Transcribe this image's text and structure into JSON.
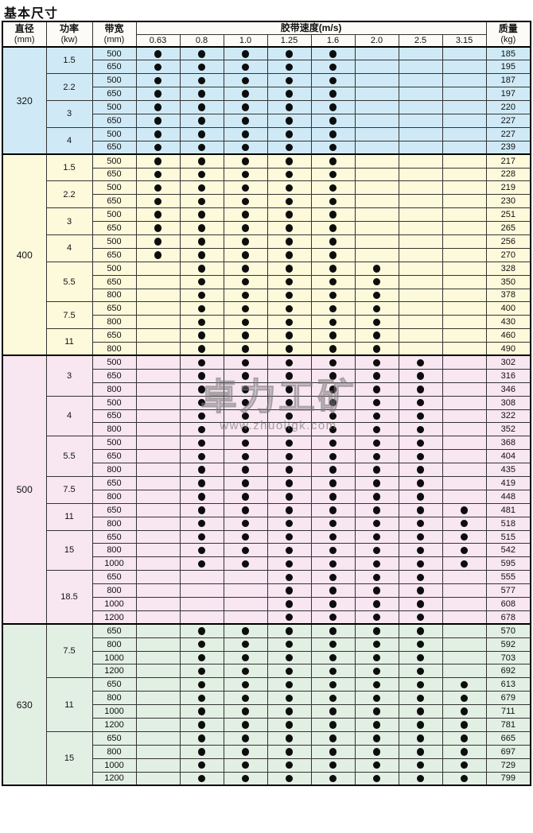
{
  "page_title": "基本尺寸",
  "header": {
    "diameter": [
      "直径",
      "(mm)"
    ],
    "power": [
      "功率",
      "(kw)"
    ],
    "belt_width": [
      "带宽",
      "(mm)"
    ],
    "speed_group": "胶带速度(m/s)",
    "speeds": [
      "0.63",
      "0.8",
      "1.0",
      "1.25",
      "1.6",
      "2.0",
      "2.5",
      "3.15"
    ],
    "mass": [
      "质量",
      "(kg)"
    ]
  },
  "watermark": {
    "brand": "卓力工矿",
    "url": "www.zhuoligk.com"
  },
  "colors": {
    "section_320": "#cfeaf6",
    "section_400": "#fdfadb",
    "section_500": "#f8e6f1",
    "section_630": "#e2efe3",
    "dot": "#0d0d0d",
    "border": "#000000"
  },
  "sections": [
    {
      "diameter": "320",
      "bg": "#cfeaf6",
      "groups": [
        {
          "power": "1.5",
          "rows": [
            {
              "width": "500",
              "dots": [
                1,
                1,
                1,
                1,
                1,
                0,
                0,
                0
              ],
              "mass": "185"
            },
            {
              "width": "650",
              "dots": [
                1,
                1,
                1,
                1,
                1,
                0,
                0,
                0
              ],
              "mass": "195"
            }
          ]
        },
        {
          "power": "2.2",
          "rows": [
            {
              "width": "500",
              "dots": [
                1,
                1,
                1,
                1,
                1,
                0,
                0,
                0
              ],
              "mass": "187"
            },
            {
              "width": "650",
              "dots": [
                1,
                1,
                1,
                1,
                1,
                0,
                0,
                0
              ],
              "mass": "197"
            }
          ]
        },
        {
          "power": "3",
          "rows": [
            {
              "width": "500",
              "dots": [
                1,
                1,
                1,
                1,
                1,
                0,
                0,
                0
              ],
              "mass": "220"
            },
            {
              "width": "650",
              "dots": [
                1,
                1,
                1,
                1,
                1,
                0,
                0,
                0
              ],
              "mass": "227"
            }
          ]
        },
        {
          "power": "4",
          "rows": [
            {
              "width": "500",
              "dots": [
                1,
                1,
                1,
                1,
                1,
                0,
                0,
                0
              ],
              "mass": "227"
            },
            {
              "width": "650",
              "dots": [
                1,
                1,
                1,
                1,
                1,
                0,
                0,
                0
              ],
              "mass": "239"
            }
          ]
        }
      ]
    },
    {
      "diameter": "400",
      "bg": "#fdfadb",
      "groups": [
        {
          "power": "1.5",
          "rows": [
            {
              "width": "500",
              "dots": [
                1,
                1,
                1,
                1,
                1,
                0,
                0,
                0
              ],
              "mass": "217"
            },
            {
              "width": "650",
              "dots": [
                1,
                1,
                1,
                1,
                1,
                0,
                0,
                0
              ],
              "mass": "228"
            }
          ]
        },
        {
          "power": "2.2",
          "rows": [
            {
              "width": "500",
              "dots": [
                1,
                1,
                1,
                1,
                1,
                0,
                0,
                0
              ],
              "mass": "219"
            },
            {
              "width": "650",
              "dots": [
                1,
                1,
                1,
                1,
                1,
                0,
                0,
                0
              ],
              "mass": "230"
            }
          ]
        },
        {
          "power": "3",
          "rows": [
            {
              "width": "500",
              "dots": [
                1,
                1,
                1,
                1,
                1,
                0,
                0,
                0
              ],
              "mass": "251"
            },
            {
              "width": "650",
              "dots": [
                1,
                1,
                1,
                1,
                1,
                0,
                0,
                0
              ],
              "mass": "265"
            }
          ]
        },
        {
          "power": "4",
          "rows": [
            {
              "width": "500",
              "dots": [
                1,
                1,
                1,
                1,
                1,
                0,
                0,
                0
              ],
              "mass": "256"
            },
            {
              "width": "650",
              "dots": [
                1,
                1,
                1,
                1,
                1,
                0,
                0,
                0
              ],
              "mass": "270"
            }
          ]
        },
        {
          "power": "5.5",
          "rows": [
            {
              "width": "500",
              "dots": [
                0,
                1,
                1,
                1,
                1,
                1,
                0,
                0
              ],
              "mass": "328"
            },
            {
              "width": "650",
              "dots": [
                0,
                1,
                1,
                1,
                1,
                1,
                0,
                0
              ],
              "mass": "350"
            },
            {
              "width": "800",
              "dots": [
                0,
                1,
                1,
                1,
                1,
                1,
                0,
                0
              ],
              "mass": "378"
            }
          ]
        },
        {
          "power": "7.5",
          "rows": [
            {
              "width": "650",
              "dots": [
                0,
                1,
                1,
                1,
                1,
                1,
                0,
                0
              ],
              "mass": "400"
            },
            {
              "width": "800",
              "dots": [
                0,
                1,
                1,
                1,
                1,
                1,
                0,
                0
              ],
              "mass": "430"
            }
          ]
        },
        {
          "power": "11",
          "rows": [
            {
              "width": "650",
              "dots": [
                0,
                1,
                1,
                1,
                1,
                1,
                0,
                0
              ],
              "mass": "460"
            },
            {
              "width": "800",
              "dots": [
                0,
                1,
                1,
                1,
                1,
                1,
                0,
                0
              ],
              "mass": "490"
            }
          ]
        }
      ]
    },
    {
      "diameter": "500",
      "bg": "#f8e6f1",
      "groups": [
        {
          "power": "3",
          "rows": [
            {
              "width": "500",
              "dots": [
                0,
                1,
                1,
                1,
                1,
                1,
                1,
                0
              ],
              "mass": "302"
            },
            {
              "width": "650",
              "dots": [
                0,
                1,
                1,
                1,
                1,
                1,
                1,
                0
              ],
              "mass": "316"
            },
            {
              "width": "800",
              "dots": [
                0,
                1,
                1,
                1,
                1,
                1,
                1,
                0
              ],
              "mass": "346"
            }
          ]
        },
        {
          "power": "4",
          "rows": [
            {
              "width": "500",
              "dots": [
                0,
                1,
                1,
                1,
                1,
                1,
                1,
                0
              ],
              "mass": "308"
            },
            {
              "width": "650",
              "dots": [
                0,
                1,
                1,
                1,
                1,
                1,
                1,
                0
              ],
              "mass": "322"
            },
            {
              "width": "800",
              "dots": [
                0,
                1,
                1,
                1,
                1,
                1,
                1,
                0
              ],
              "mass": "352"
            }
          ]
        },
        {
          "power": "5.5",
          "rows": [
            {
              "width": "500",
              "dots": [
                0,
                1,
                1,
                1,
                1,
                1,
                1,
                0
              ],
              "mass": "368"
            },
            {
              "width": "650",
              "dots": [
                0,
                1,
                1,
                1,
                1,
                1,
                1,
                0
              ],
              "mass": "404"
            },
            {
              "width": "800",
              "dots": [
                0,
                1,
                1,
                1,
                1,
                1,
                1,
                0
              ],
              "mass": "435"
            }
          ]
        },
        {
          "power": "7.5",
          "rows": [
            {
              "width": "650",
              "dots": [
                0,
                1,
                1,
                1,
                1,
                1,
                1,
                0
              ],
              "mass": "419"
            },
            {
              "width": "800",
              "dots": [
                0,
                1,
                1,
                1,
                1,
                1,
                1,
                0
              ],
              "mass": "448"
            }
          ]
        },
        {
          "power": "11",
          "rows": [
            {
              "width": "650",
              "dots": [
                0,
                1,
                1,
                1,
                1,
                1,
                1,
                1
              ],
              "mass": "481"
            },
            {
              "width": "800",
              "dots": [
                0,
                1,
                1,
                1,
                1,
                1,
                1,
                1
              ],
              "mass": "518"
            }
          ]
        },
        {
          "power": "15",
          "rows": [
            {
              "width": "650",
              "dots": [
                0,
                1,
                1,
                1,
                1,
                1,
                1,
                1
              ],
              "mass": "515"
            },
            {
              "width": "800",
              "dots": [
                0,
                1,
                1,
                1,
                1,
                1,
                1,
                1
              ],
              "mass": "542"
            },
            {
              "width": "1000",
              "dots": [
                0,
                1,
                1,
                1,
                1,
                1,
                1,
                1
              ],
              "mass": "595"
            }
          ]
        },
        {
          "power": "18.5",
          "rows": [
            {
              "width": "650",
              "dots": [
                0,
                0,
                0,
                1,
                1,
                1,
                1,
                0
              ],
              "mass": "555"
            },
            {
              "width": "800",
              "dots": [
                0,
                0,
                0,
                1,
                1,
                1,
                1,
                0
              ],
              "mass": "577"
            },
            {
              "width": "1000",
              "dots": [
                0,
                0,
                0,
                1,
                1,
                1,
                1,
                0
              ],
              "mass": "608"
            },
            {
              "width": "1200",
              "dots": [
                0,
                0,
                0,
                1,
                1,
                1,
                1,
                0
              ],
              "mass": "678"
            }
          ]
        }
      ]
    },
    {
      "diameter": "630",
      "bg": "#e2efe3",
      "groups": [
        {
          "power": "7.5",
          "rows": [
            {
              "width": "650",
              "dots": [
                0,
                1,
                1,
                1,
                1,
                1,
                1,
                0
              ],
              "mass": "570"
            },
            {
              "width": "800",
              "dots": [
                0,
                1,
                1,
                1,
                1,
                1,
                1,
                0
              ],
              "mass": "592"
            },
            {
              "width": "1000",
              "dots": [
                0,
                1,
                1,
                1,
                1,
                1,
                1,
                0
              ],
              "mass": "703"
            },
            {
              "width": "1200",
              "dots": [
                0,
                1,
                1,
                1,
                1,
                1,
                1,
                0
              ],
              "mass": "692"
            }
          ]
        },
        {
          "power": "11",
          "rows": [
            {
              "width": "650",
              "dots": [
                0,
                1,
                1,
                1,
                1,
                1,
                1,
                1
              ],
              "mass": "613"
            },
            {
              "width": "800",
              "dots": [
                0,
                1,
                1,
                1,
                1,
                1,
                1,
                1
              ],
              "mass": "679"
            },
            {
              "width": "1000",
              "dots": [
                0,
                1,
                1,
                1,
                1,
                1,
                1,
                1
              ],
              "mass": "711"
            },
            {
              "width": "1200",
              "dots": [
                0,
                1,
                1,
                1,
                1,
                1,
                1,
                1
              ],
              "mass": "781"
            }
          ]
        },
        {
          "power": "15",
          "rows": [
            {
              "width": "650",
              "dots": [
                0,
                1,
                1,
                1,
                1,
                1,
                1,
                1
              ],
              "mass": "665"
            },
            {
              "width": "800",
              "dots": [
                0,
                1,
                1,
                1,
                1,
                1,
                1,
                1
              ],
              "mass": "697"
            },
            {
              "width": "1000",
              "dots": [
                0,
                1,
                1,
                1,
                1,
                1,
                1,
                1
              ],
              "mass": "729"
            },
            {
              "width": "1200",
              "dots": [
                0,
                1,
                1,
                1,
                1,
                1,
                1,
                1
              ],
              "mass": "799"
            }
          ]
        }
      ]
    }
  ]
}
